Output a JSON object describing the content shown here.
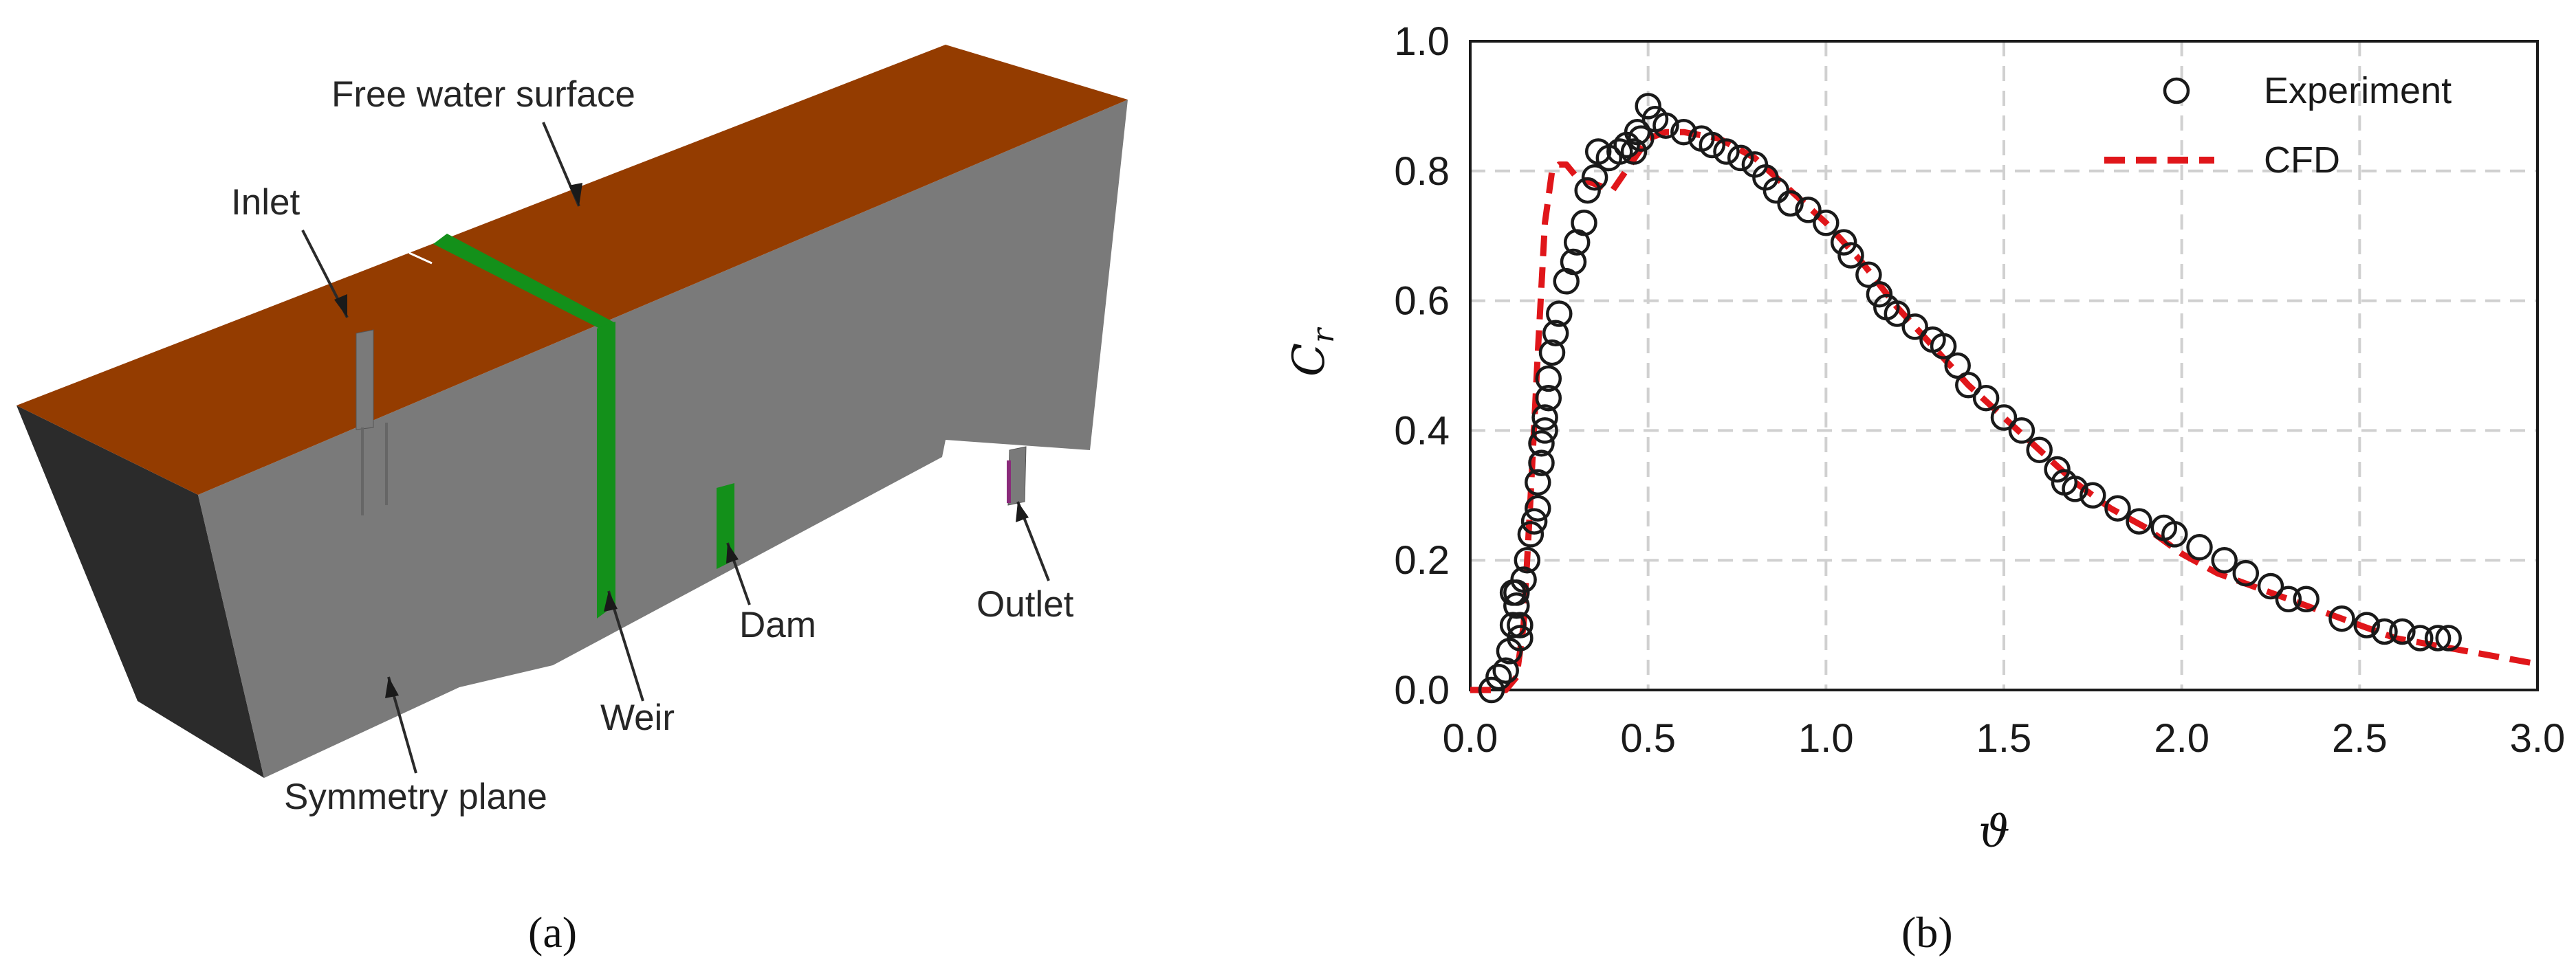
{
  "colors": {
    "water_surface": "#943c00",
    "body_front": "#7a7a7a",
    "body_side": "#2b2b2b",
    "weir": "#13901a",
    "cfd_line": "#e0161a",
    "grid": "#d0d0d0"
  },
  "panel_a": {
    "caption": "(a)",
    "labels": {
      "free_surface": "Free water surface",
      "inlet": "Inlet",
      "weir": "Weir",
      "dam": "Dam",
      "outlet": "Outlet",
      "symmetry": "Symmetry plane"
    }
  },
  "panel_b": {
    "caption": "(b)"
  },
  "chart_data": {
    "type": "scatter",
    "xlabel": "ϑ",
    "ylabel": "C",
    "ylabel_sub": "r",
    "xlim": [
      0,
      3.0
    ],
    "ylim": [
      0,
      1.0
    ],
    "xticks": [
      0.0,
      0.5,
      1.0,
      1.5,
      2.0,
      2.5,
      3.0
    ],
    "yticks": [
      0.0,
      0.2,
      0.4,
      0.6,
      0.8,
      1.0
    ],
    "xtick_labels": [
      "0.0",
      "0.5",
      "1.0",
      "1.5",
      "2.0",
      "2.5",
      "3.0"
    ],
    "ytick_labels": [
      "0.0",
      "0.2",
      "0.4",
      "0.6",
      "0.8",
      "1.0"
    ],
    "grid": true,
    "legend_position": "top-right",
    "series": [
      {
        "name": "Experiment",
        "style": "open-circle",
        "x": [
          0.06,
          0.08,
          0.1,
          0.11,
          0.12,
          0.12,
          0.13,
          0.13,
          0.14,
          0.14,
          0.15,
          0.16,
          0.17,
          0.18,
          0.19,
          0.19,
          0.2,
          0.2,
          0.21,
          0.21,
          0.22,
          0.22,
          0.23,
          0.24,
          0.25,
          0.27,
          0.29,
          0.3,
          0.32,
          0.33,
          0.35,
          0.36,
          0.39,
          0.42,
          0.44,
          0.46,
          0.47,
          0.48,
          0.5,
          0.52,
          0.55,
          0.6,
          0.65,
          0.68,
          0.72,
          0.76,
          0.8,
          0.83,
          0.86,
          0.9,
          0.95,
          1.0,
          1.05,
          1.07,
          1.12,
          1.15,
          1.17,
          1.2,
          1.25,
          1.3,
          1.33,
          1.37,
          1.4,
          1.45,
          1.5,
          1.55,
          1.6,
          1.65,
          1.67,
          1.7,
          1.75,
          1.82,
          1.88,
          1.95,
          1.98,
          2.05,
          2.12,
          2.18,
          2.25,
          2.3,
          2.35,
          2.45,
          2.52,
          2.57,
          2.62,
          2.67,
          2.72,
          2.75
        ],
        "y": [
          0.0,
          0.02,
          0.03,
          0.06,
          0.1,
          0.15,
          0.13,
          0.15,
          0.1,
          0.08,
          0.17,
          0.2,
          0.24,
          0.26,
          0.28,
          0.32,
          0.35,
          0.38,
          0.4,
          0.42,
          0.45,
          0.48,
          0.52,
          0.55,
          0.58,
          0.63,
          0.66,
          0.69,
          0.72,
          0.77,
          0.79,
          0.83,
          0.82,
          0.83,
          0.84,
          0.83,
          0.86,
          0.85,
          0.9,
          0.88,
          0.87,
          0.86,
          0.85,
          0.84,
          0.83,
          0.82,
          0.81,
          0.79,
          0.77,
          0.75,
          0.74,
          0.72,
          0.69,
          0.67,
          0.64,
          0.61,
          0.59,
          0.58,
          0.56,
          0.54,
          0.53,
          0.5,
          0.47,
          0.45,
          0.42,
          0.4,
          0.37,
          0.34,
          0.32,
          0.31,
          0.3,
          0.28,
          0.26,
          0.25,
          0.24,
          0.22,
          0.2,
          0.18,
          0.16,
          0.14,
          0.14,
          0.11,
          0.1,
          0.09,
          0.09,
          0.08,
          0.08,
          0.08
        ]
      },
      {
        "name": "CFD",
        "style": "dashed-line",
        "x": [
          0.0,
          0.05,
          0.1,
          0.13,
          0.15,
          0.17,
          0.19,
          0.21,
          0.23,
          0.25,
          0.27,
          0.3,
          0.35,
          0.4,
          0.45,
          0.5,
          0.55,
          0.6,
          0.7,
          0.8,
          0.9,
          1.0,
          1.1,
          1.2,
          1.3,
          1.4,
          1.5,
          1.6,
          1.7,
          1.8,
          1.9,
          2.0,
          2.1,
          2.2,
          2.3,
          2.4,
          2.5,
          2.6,
          2.7,
          2.8,
          2.9,
          3.0
        ],
        "y": [
          0.0,
          0.0,
          0.0,
          0.02,
          0.1,
          0.3,
          0.52,
          0.72,
          0.8,
          0.81,
          0.81,
          0.79,
          0.78,
          0.77,
          0.81,
          0.85,
          0.86,
          0.86,
          0.85,
          0.82,
          0.77,
          0.72,
          0.66,
          0.59,
          0.53,
          0.47,
          0.42,
          0.37,
          0.32,
          0.28,
          0.25,
          0.21,
          0.18,
          0.16,
          0.14,
          0.12,
          0.1,
          0.08,
          0.07,
          0.06,
          0.05,
          0.04
        ]
      }
    ]
  }
}
